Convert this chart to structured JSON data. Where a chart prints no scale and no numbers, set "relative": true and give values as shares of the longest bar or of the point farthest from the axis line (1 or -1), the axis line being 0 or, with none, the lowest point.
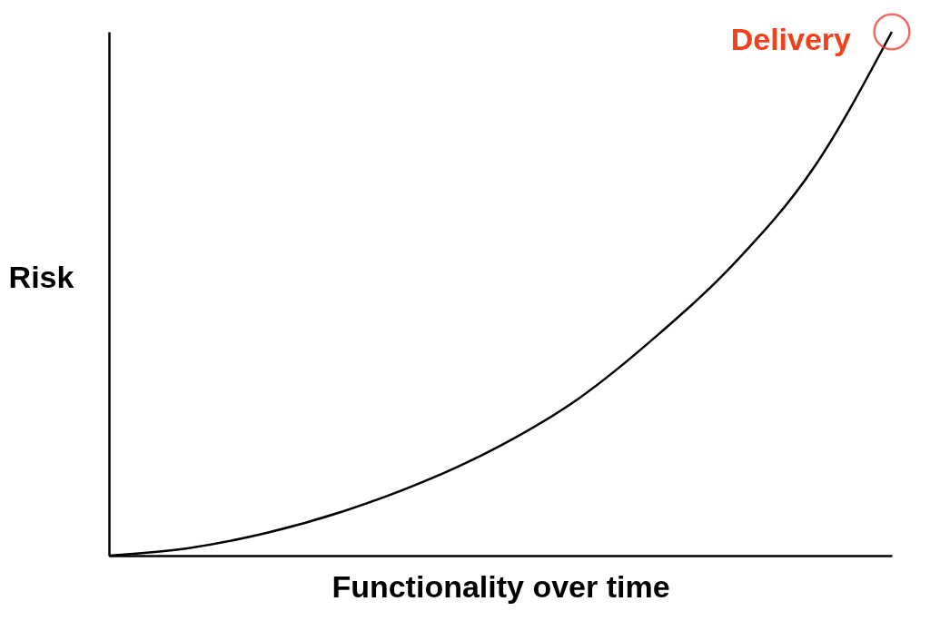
{
  "chart_data": {
    "type": "line",
    "relative": true,
    "xlabel": "Functionality over time",
    "ylabel": "Risk",
    "categories": [
      null,
      null,
      null,
      null,
      null,
      null,
      null,
      null,
      null,
      null,
      null
    ],
    "series": [
      {
        "color": "#000000",
        "values": [
          0,
          0.014,
          0.043,
          0.085,
          0.14,
          0.21,
          0.3,
          0.42,
          0.56,
          0.74,
          1.0
        ]
      }
    ],
    "annotations": [
      "Delivery"
    ],
    "marker": "none",
    "line_style": "solid",
    "grid": false,
    "tick_labels": false
  }
}
